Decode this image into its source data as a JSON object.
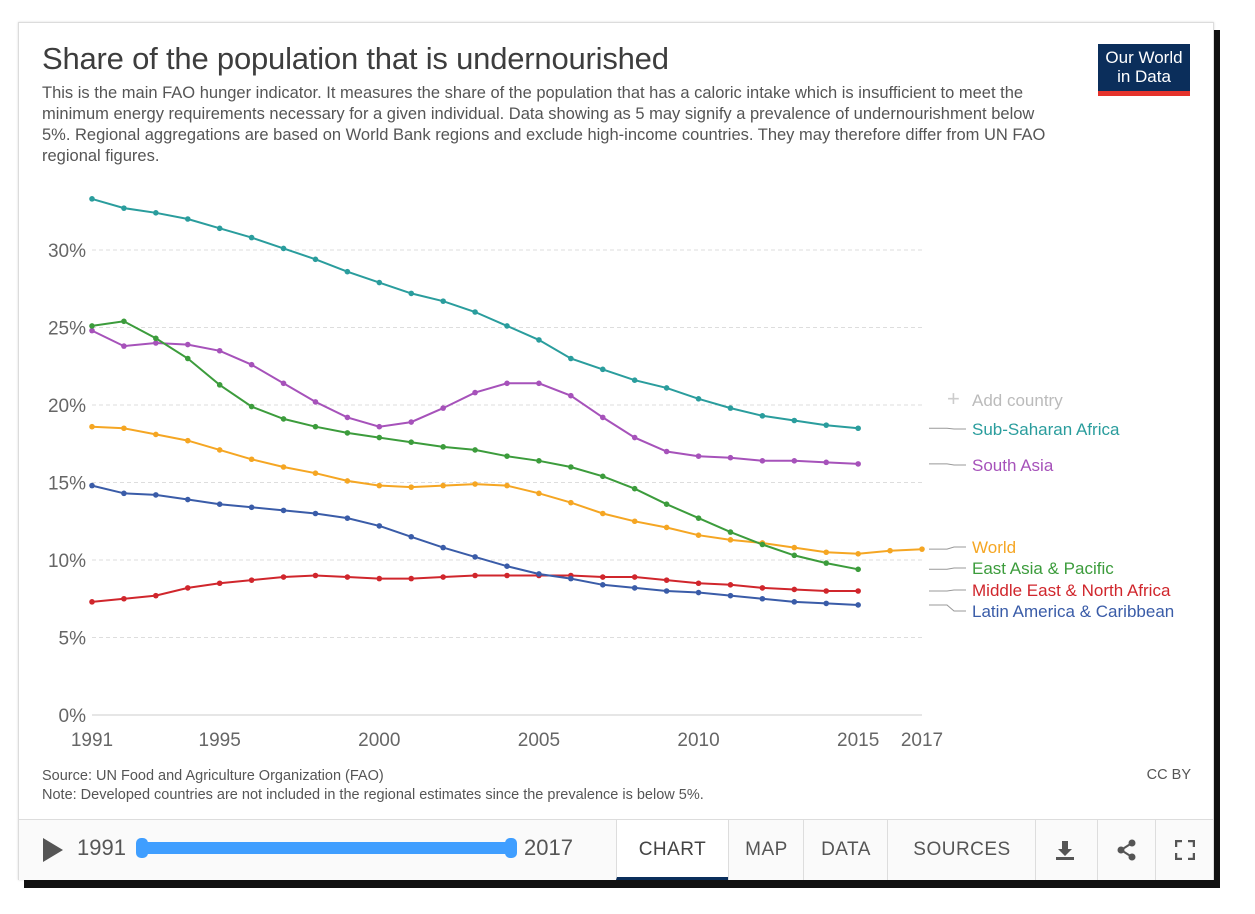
{
  "header": {
    "title": "Share of the population that is undernourished",
    "subtitle": "This is the main FAO hunger indicator. It measures the share of the population that has a caloric intake which is insufficient to meet the minimum energy requirements necessary for a given individual. Data showing as 5 may signify a prevalence of undernourishment below 5%. Regional aggregations are based on World Bank regions and exclude high-income countries. They may therefore differ from UN FAO regional figures.",
    "logo_line1": "Our World",
    "logo_line2": "in Data"
  },
  "add_country": "Add country",
  "footer": {
    "source": "Source: UN Food and Agriculture Organization (FAO)",
    "note": "Note: Developed countries are not included in the regional estimates since the prevalence is below 5%.",
    "license": "CC BY"
  },
  "controls": {
    "year_start": "1991",
    "year_end": "2017",
    "tabs": [
      "CHART",
      "MAP",
      "DATA",
      "SOURCES"
    ],
    "active_tab": "CHART",
    "icons": [
      "download-icon",
      "share-icon",
      "fullscreen-icon"
    ]
  },
  "colors": {
    "Sub-Saharan Africa": "#2a9d9d",
    "South Asia": "#a652ba",
    "World": "#f5a623",
    "East Asia & Pacific": "#3c9c3c",
    "Middle East & North Africa": "#d0262c",
    "Latin America & Caribbean": "#3a5ca8"
  },
  "chart_data": {
    "type": "line",
    "x_ticks": [
      "1991",
      "1995",
      "2000",
      "2005",
      "2010",
      "2015",
      "2017"
    ],
    "y_ticks": [
      "0%",
      "5%",
      "10%",
      "15%",
      "20%",
      "25%",
      "30%"
    ],
    "ylim": [
      0,
      33
    ],
    "xlim": [
      1991,
      2017
    ],
    "grid": "horizontal dashed",
    "legend": "right, labels at line ends",
    "series": [
      {
        "name": "Sub-Saharan Africa",
        "x": [
          1991,
          1992,
          1993,
          1994,
          1995,
          1996,
          1997,
          1998,
          1999,
          2000,
          2001,
          2002,
          2003,
          2004,
          2005,
          2006,
          2007,
          2008,
          2009,
          2010,
          2011,
          2012,
          2013,
          2014,
          2015
        ],
        "values": [
          33.3,
          32.7,
          32.4,
          32.0,
          31.4,
          30.8,
          30.1,
          29.4,
          28.6,
          27.9,
          27.2,
          26.7,
          26.0,
          25.1,
          24.2,
          23.0,
          22.3,
          21.6,
          21.1,
          20.4,
          19.8,
          19.3,
          19.0,
          18.7,
          18.5
        ]
      },
      {
        "name": "South Asia",
        "x": [
          1991,
          1992,
          1993,
          1994,
          1995,
          1996,
          1997,
          1998,
          1999,
          2000,
          2001,
          2002,
          2003,
          2004,
          2005,
          2006,
          2007,
          2008,
          2009,
          2010,
          2011,
          2012,
          2013,
          2014,
          2015
        ],
        "values": [
          24.8,
          23.8,
          24.0,
          23.9,
          23.5,
          22.6,
          21.4,
          20.2,
          19.2,
          18.6,
          18.9,
          19.8,
          20.8,
          21.4,
          21.4,
          20.6,
          19.2,
          17.9,
          17.0,
          16.7,
          16.6,
          16.4,
          16.4,
          16.3,
          16.2
        ]
      },
      {
        "name": "World",
        "x": [
          1991,
          1992,
          1993,
          1994,
          1995,
          1996,
          1997,
          1998,
          1999,
          2000,
          2001,
          2002,
          2003,
          2004,
          2005,
          2006,
          2007,
          2008,
          2009,
          2010,
          2011,
          2012,
          2013,
          2014,
          2015,
          2016,
          2017
        ],
        "values": [
          18.6,
          18.5,
          18.1,
          17.7,
          17.1,
          16.5,
          16.0,
          15.6,
          15.1,
          14.8,
          14.7,
          14.8,
          14.9,
          14.8,
          14.3,
          13.7,
          13.0,
          12.5,
          12.1,
          11.6,
          11.3,
          11.1,
          10.8,
          10.5,
          10.4,
          10.6,
          10.7
        ]
      },
      {
        "name": "East Asia & Pacific",
        "x": [
          1991,
          1992,
          1993,
          1994,
          1995,
          1996,
          1997,
          1998,
          1999,
          2000,
          2001,
          2002,
          2003,
          2004,
          2005,
          2006,
          2007,
          2008,
          2009,
          2010,
          2011,
          2012,
          2013,
          2014,
          2015
        ],
        "values": [
          25.1,
          25.4,
          24.3,
          23.0,
          21.3,
          19.9,
          19.1,
          18.6,
          18.2,
          17.9,
          17.6,
          17.3,
          17.1,
          16.7,
          16.4,
          16.0,
          15.4,
          14.6,
          13.6,
          12.7,
          11.8,
          11.0,
          10.3,
          9.8,
          9.4
        ]
      },
      {
        "name": "Middle East & North Africa",
        "x": [
          1991,
          1992,
          1993,
          1994,
          1995,
          1996,
          1997,
          1998,
          1999,
          2000,
          2001,
          2002,
          2003,
          2004,
          2005,
          2006,
          2007,
          2008,
          2009,
          2010,
          2011,
          2012,
          2013,
          2014,
          2015
        ],
        "values": [
          7.3,
          7.5,
          7.7,
          8.2,
          8.5,
          8.7,
          8.9,
          9.0,
          8.9,
          8.8,
          8.8,
          8.9,
          9.0,
          9.0,
          9.0,
          9.0,
          8.9,
          8.9,
          8.7,
          8.5,
          8.4,
          8.2,
          8.1,
          8.0,
          8.0
        ]
      },
      {
        "name": "Latin America & Caribbean",
        "x": [
          1991,
          1992,
          1993,
          1994,
          1995,
          1996,
          1997,
          1998,
          1999,
          2000,
          2001,
          2002,
          2003,
          2004,
          2005,
          2006,
          2007,
          2008,
          2009,
          2010,
          2011,
          2012,
          2013,
          2014,
          2015
        ],
        "values": [
          14.8,
          14.3,
          14.2,
          13.9,
          13.6,
          13.4,
          13.2,
          13.0,
          12.7,
          12.2,
          11.5,
          10.8,
          10.2,
          9.6,
          9.1,
          8.8,
          8.4,
          8.2,
          8.0,
          7.9,
          7.7,
          7.5,
          7.3,
          7.2,
          7.1
        ]
      }
    ]
  }
}
